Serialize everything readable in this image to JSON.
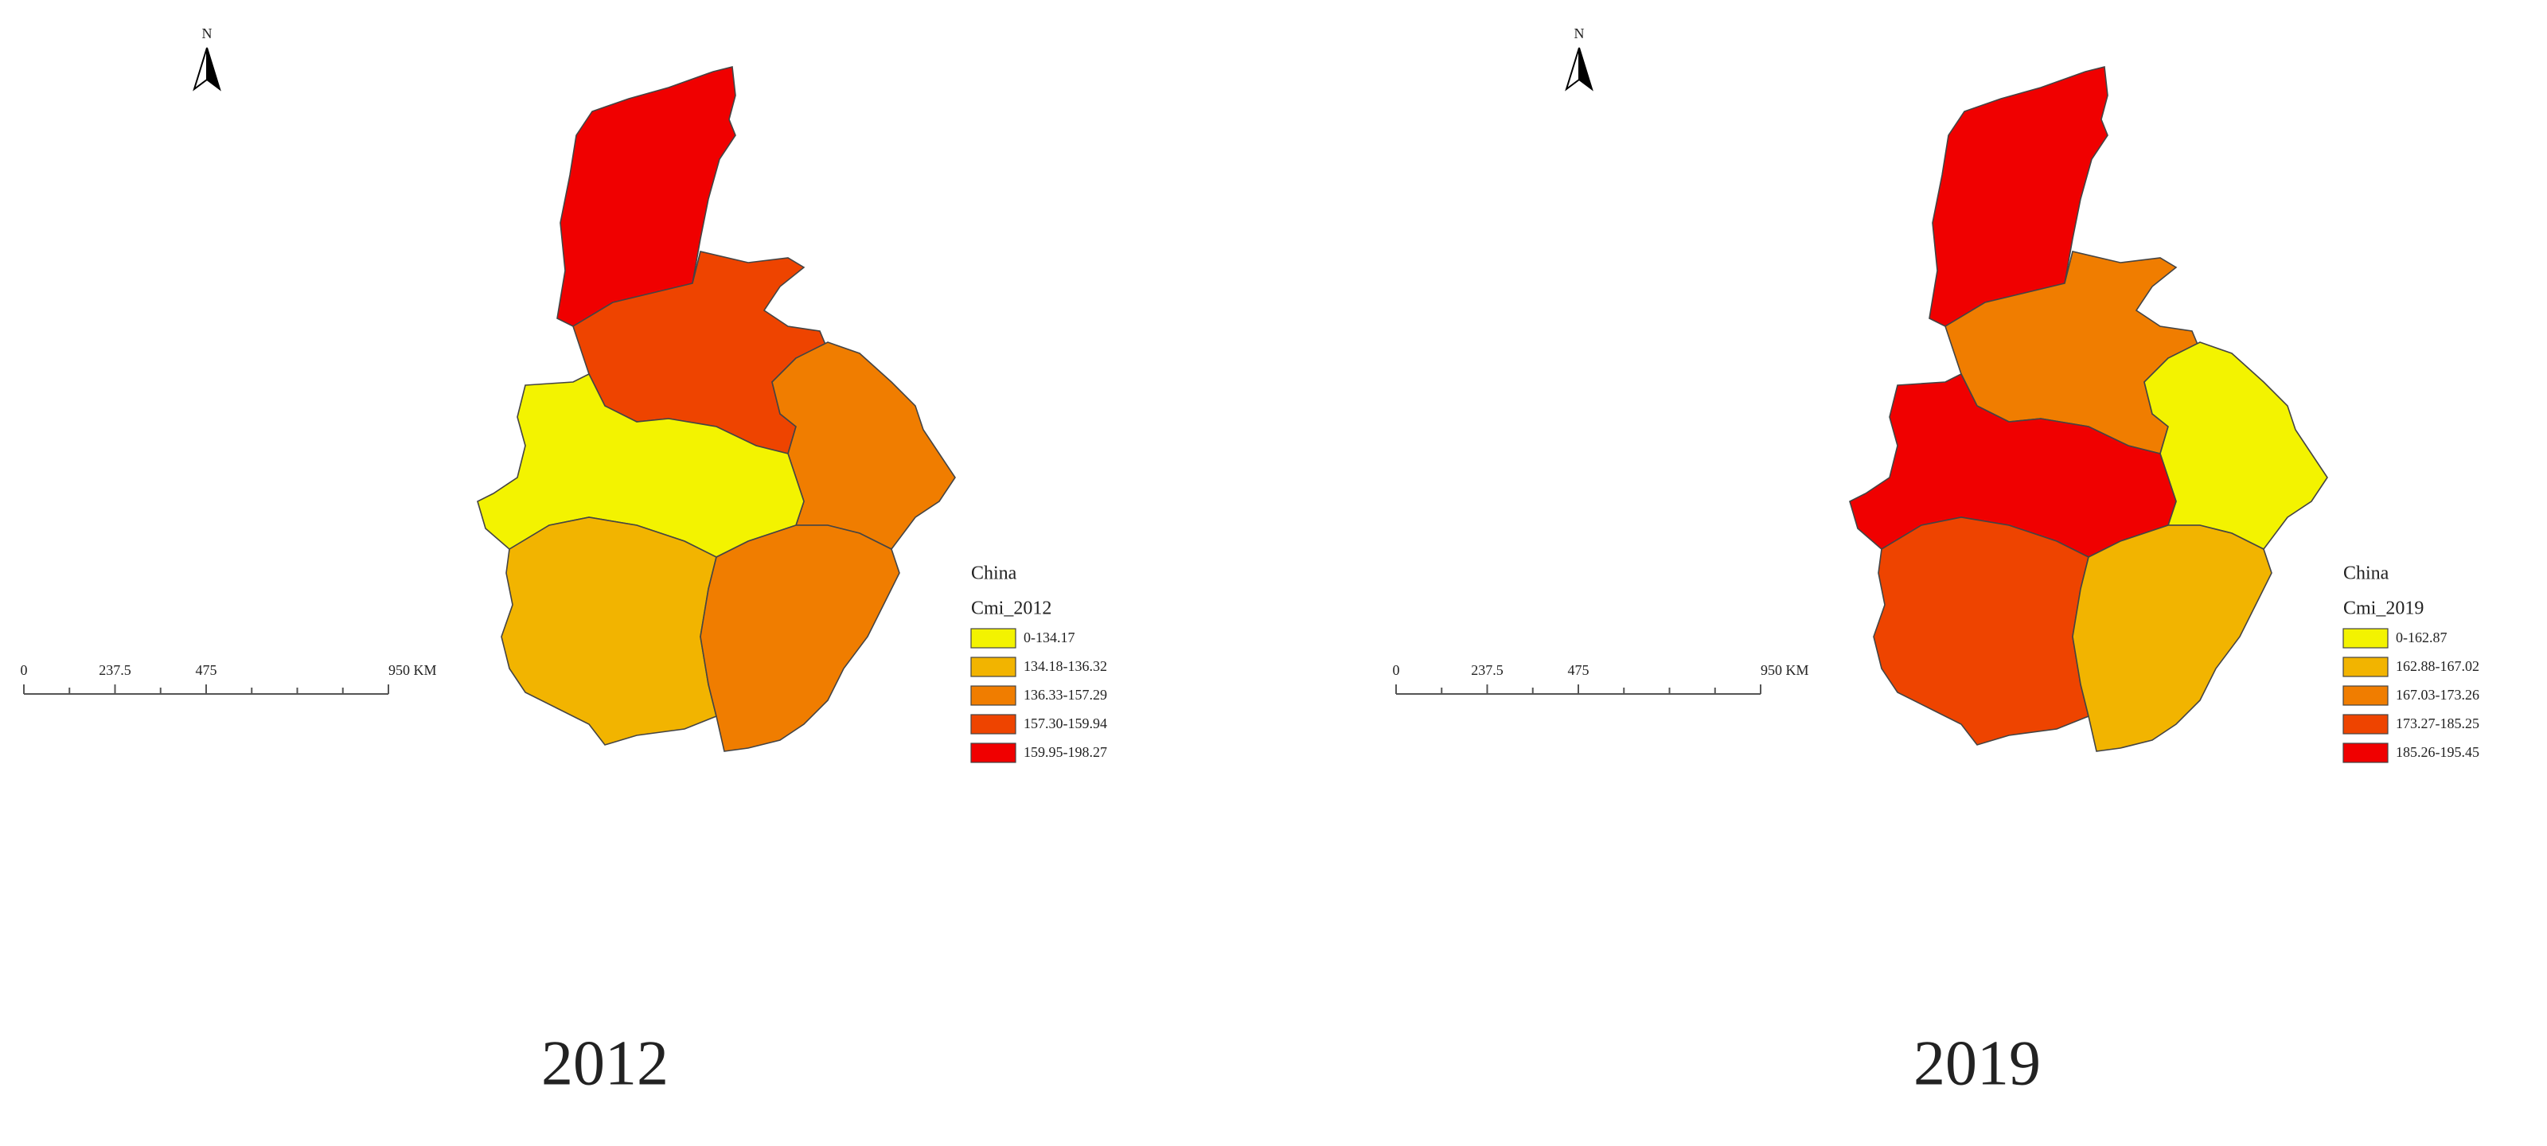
{
  "maps": [
    {
      "north_label": "N",
      "scale_ticks": [
        0,
        237.5,
        475,
        {
          "value": 950,
          "label": "950 KM"
        }
      ],
      "legend_title": "China",
      "legend_field": "Cmi_2012",
      "classes": [
        {
          "label": "0-134.17",
          "color": "#f3f300"
        },
        {
          "label": "134.18-136.32",
          "color": "#f2b400"
        },
        {
          "label": "136.33-157.29",
          "color": "#f07d00"
        },
        {
          "label": "157.30-159.94",
          "color": "#ee4400"
        },
        {
          "label": "159.95-198.27",
          "color": "#f00000"
        }
      ],
      "regions": [
        {
          "color": "#f00000"
        },
        {
          "color": "#ee4400"
        },
        {
          "color": "#f07d00"
        },
        {
          "color": "#f3f300"
        },
        {
          "color": "#f2b400"
        },
        {
          "color": "#f07d00"
        }
      ],
      "year_label": "2012"
    },
    {
      "north_label": "N",
      "scale_ticks": [
        0,
        237.5,
        475,
        {
          "value": 950,
          "label": "950 KM"
        }
      ],
      "legend_title": "China",
      "legend_field": "Cmi_2019",
      "classes": [
        {
          "label": "0-162.87",
          "color": "#f3f300"
        },
        {
          "label": "162.88-167.02",
          "color": "#f2b400"
        },
        {
          "label": "167.03-173.26",
          "color": "#f07d00"
        },
        {
          "label": "173.27-185.25",
          "color": "#ee4400"
        },
        {
          "label": "185.26-195.45",
          "color": "#f00000"
        }
      ],
      "regions": [
        {
          "color": "#f00000"
        },
        {
          "color": "#f07d00"
        },
        {
          "color": "#f3f300"
        },
        {
          "color": "#f00000"
        },
        {
          "color": "#ee4400"
        },
        {
          "color": "#f2b400"
        }
      ],
      "year_label": "2019"
    }
  ]
}
